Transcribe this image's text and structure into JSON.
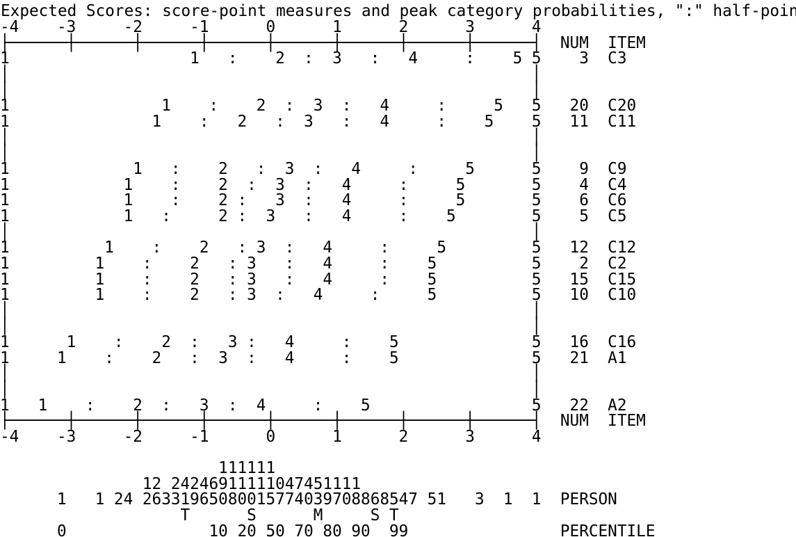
{
  "title": "Expected Scores: score-point measures and peak category probabilities, \":\" half-point",
  "plot_lines": [
    "-4    -3     -2     -1      0      1      2      3      4",
    "├──────┼──────┼──────┼──────┼──────┼──────┼──────┼──────┤  NUM  ITEM",
    "1                   1   :    2  :  3   :   4     :    5 5    3  C3",
    "│                                                       │",
    "│                                                       │",
    "1                1    :    2  :  3  :   4     :     5   5   20  C20",
    "1               1    :   2   :  3   :   4     :    5    5   11  C11",
    "│                                                       │",
    "│                                                       │",
    "1             1   :    2   :  3  :   4     :     5      5    9  C9",
    "1            1    :    2  :  3  :   4     :     5       5    4  C4",
    "1            1    :    2 :   3  :   4     :     5       5    6  C6",
    "1            1   :     2 :  3   :   4     :    5        5    5  C5",
    "│                                                       │",
    "1          1    :    2   : 3  :   4     :     5         5   12  C12",
    "1         1    :    2   : 3   :   4     :    5          5    2  C2",
    "1         1    :    2   : 3   :   4     :    5          5   15  C15",
    "1         1    :    2   : 3  :   4     :     5          5   10  C10",
    "│                                                       │",
    "│                                                       │",
    "1      1    :    2  :   3 :   4     :    5              5   16  C16",
    "1     1    :    2   :  3  :   4     :    5              5   21  A1",
    "│                                                       │",
    "│                                                       │",
    "1   1    :    2  :   3  :  4     :    5                 5   22  A2",
    "├──────┼──────┼──────┼──────┼──────┼──────┼──────┼──────┤  NUM  ITEM",
    "-4    -3     -2     -1      0      1      2      3      4"
  ],
  "distribution_lines": [
    "                       111111",
    "               12 24246911111047451111",
    "      1   1 24 26331965080015774039708868547 51   3  1  1  PERSON",
    "                   T      S      M     S T",
    "      0               10 20 50 70 80 90  99                PERCENTILE"
  ]
}
